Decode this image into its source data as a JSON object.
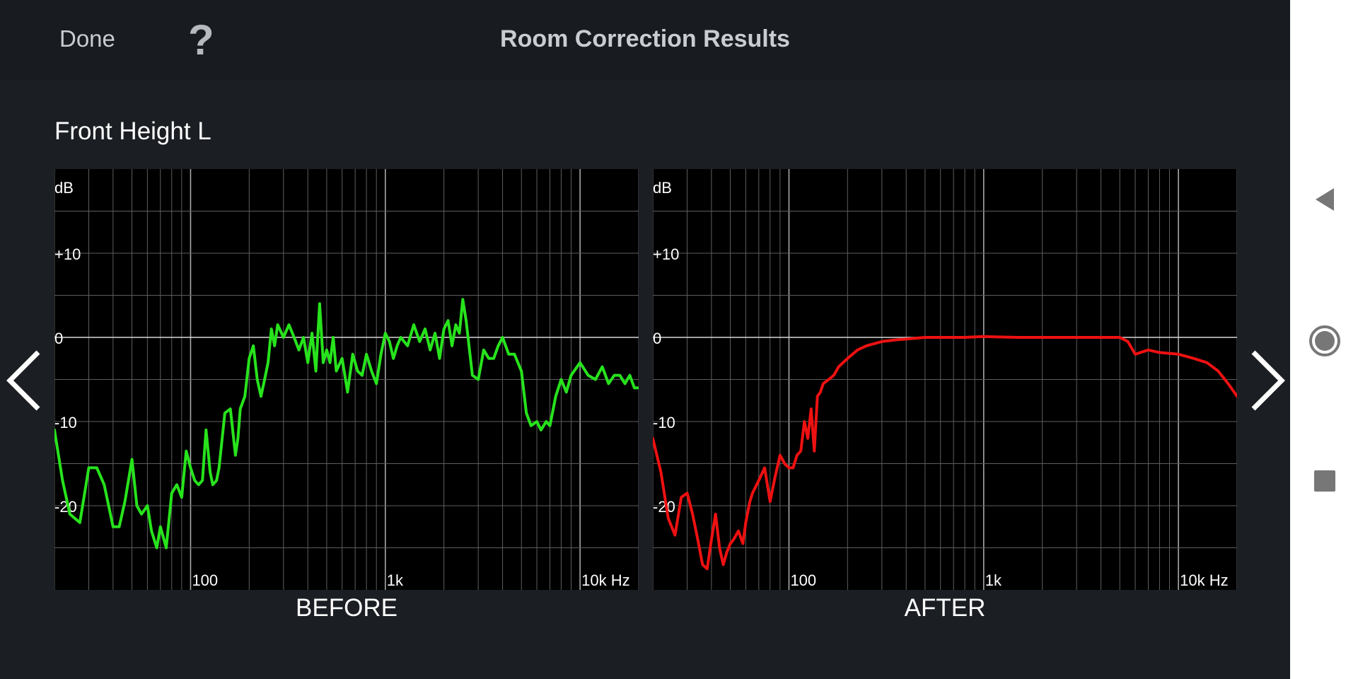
{
  "header": {
    "done_label": "Done",
    "help_label": "?",
    "title": "Room Correction Results"
  },
  "channel": {
    "name": "Front Height L"
  },
  "colors": {
    "before_curve": "#27e31c",
    "after_curve": "#ee1111",
    "grid": "#5e5e5e",
    "zero_line": "#d8d8d8",
    "background": "#1b1e23"
  },
  "icons": {
    "prev": "chevron-left-icon",
    "next": "chevron-right-icon",
    "back": "triangle-back-icon",
    "home": "circle-home-icon",
    "recent": "square-recent-icon"
  },
  "chart_data": [
    {
      "type": "line",
      "caption": "BEFORE",
      "ylabel": "dB",
      "x_scale": "log",
      "xlim": [
        20,
        20000
      ],
      "ylim": [
        -30,
        20
      ],
      "y_tick_labels": [
        {
          "value": 10,
          "label": "+10"
        },
        {
          "value": 0,
          "label": "0"
        },
        {
          "value": -10,
          "label": "-10"
        },
        {
          "value": -20,
          "label": "-20"
        }
      ],
      "x_tick_labels": [
        {
          "value": 100,
          "label": "100"
        },
        {
          "value": 1000,
          "label": "1k"
        },
        {
          "value": 10000,
          "label": "10k Hz"
        }
      ],
      "series": [
        {
          "color": "#27e31c",
          "x": [
            20,
            22,
            24,
            27,
            30,
            33,
            36,
            40,
            43,
            46,
            50,
            53,
            56,
            60,
            63,
            67,
            70,
            75,
            80,
            85,
            90,
            95,
            100,
            105,
            110,
            115,
            120,
            126,
            130,
            136,
            140,
            150,
            160,
            170,
            175,
            180,
            190,
            200,
            210,
            220,
            230,
            240,
            250,
            260,
            270,
            280,
            300,
            320,
            340,
            360,
            380,
            400,
            420,
            440,
            460,
            480,
            500,
            520,
            540,
            560,
            600,
            640,
            680,
            720,
            760,
            800,
            850,
            900,
            950,
            1000,
            1050,
            1100,
            1150,
            1200,
            1300,
            1400,
            1500,
            1600,
            1700,
            1800,
            1900,
            2000,
            2100,
            2200,
            2300,
            2400,
            2500,
            2600,
            2800,
            3000,
            3200,
            3400,
            3600,
            3800,
            4000,
            4300,
            4600,
            5000,
            5300,
            5600,
            6000,
            6300,
            6700,
            7000,
            7500,
            8000,
            8500,
            9000,
            10000,
            11000,
            12000,
            13000,
            14000,
            15000,
            16000,
            17000,
            18000,
            19000,
            20000
          ],
          "y": [
            -11,
            -17,
            -21,
            -22,
            -15.5,
            -15.5,
            -17.5,
            -22.5,
            -22.5,
            -19.5,
            -14.5,
            -20,
            -21,
            -20,
            -23,
            -25,
            -22.5,
            -25,
            -18.5,
            -17.5,
            -19,
            -13.5,
            -15.5,
            -17,
            -17.5,
            -17,
            -11,
            -16,
            -17.5,
            -17,
            -15.5,
            -9,
            -8.5,
            -14,
            -12,
            -8.5,
            -7,
            -2.5,
            -1,
            -5,
            -7,
            -5,
            -3,
            1,
            -1,
            1.5,
            0,
            1.5,
            0,
            -1.5,
            0,
            -3,
            0.5,
            -4,
            4,
            -3,
            -1.5,
            -3,
            0,
            -4,
            -2.5,
            -6.5,
            -2,
            -4,
            -4.5,
            -2,
            -4,
            -5.5,
            -2,
            0.5,
            -0.5,
            -2.5,
            -1,
            0,
            -1,
            1.5,
            -0.5,
            1,
            -1.5,
            0.5,
            -2.5,
            1,
            2,
            -1,
            1.5,
            0.5,
            4.5,
            2,
            -4.5,
            -5,
            -1.5,
            -2.5,
            -2.5,
            -1,
            0,
            -2,
            -2,
            -4,
            -9,
            -10.5,
            -10,
            -11,
            -10,
            -10.5,
            -7,
            -5,
            -6.5,
            -4.5,
            -3,
            -4.5,
            -5,
            -3.5,
            -5.5,
            -4.5,
            -4.5,
            -5.5,
            -4.5,
            -6,
            -6
          ]
        }
      ]
    },
    {
      "type": "line",
      "caption": "AFTER",
      "ylabel": "dB",
      "x_scale": "log",
      "xlim": [
        20,
        20000
      ],
      "ylim": [
        -30,
        20
      ],
      "y_tick_labels": [
        {
          "value": 10,
          "label": "+10"
        },
        {
          "value": 0,
          "label": "0"
        },
        {
          "value": -10,
          "label": "-10"
        },
        {
          "value": -20,
          "label": "-20"
        }
      ],
      "x_tick_labels": [
        {
          "value": 100,
          "label": "100"
        },
        {
          "value": 1000,
          "label": "1k"
        },
        {
          "value": 10000,
          "label": "10k Hz"
        }
      ],
      "series": [
        {
          "color": "#ee1111",
          "x": [
            20,
            22,
            24,
            26,
            28,
            30,
            32,
            34,
            36,
            38,
            40,
            42,
            44,
            46,
            48,
            50,
            52,
            55,
            58,
            60,
            63,
            65,
            70,
            75,
            80,
            85,
            90,
            95,
            100,
            105,
            110,
            115,
            120,
            125,
            130,
            135,
            140,
            145,
            150,
            160,
            170,
            180,
            200,
            225,
            250,
            300,
            350,
            400,
            500,
            600,
            700,
            800,
            1000,
            1500,
            2000,
            3000,
            4000,
            5000,
            5500,
            6000,
            7000,
            8000,
            10000,
            12000,
            14000,
            16000,
            18000,
            20000
          ],
          "y": [
            -12,
            -16,
            -21.5,
            -23.5,
            -19,
            -18.5,
            -21,
            -24,
            -27,
            -27.5,
            -24,
            -21,
            -25,
            -27,
            -25.5,
            -24.5,
            -24,
            -23,
            -24.5,
            -22,
            -19.5,
            -18.5,
            -17,
            -15.5,
            -19.5,
            -16.5,
            -14,
            -15,
            -15.5,
            -15.5,
            -14,
            -13.5,
            -10,
            -12,
            -8.5,
            -13.5,
            -7,
            -6.5,
            -5.5,
            -5,
            -4.5,
            -3.5,
            -2.5,
            -1.5,
            -1,
            -0.5,
            -0.3,
            -0.2,
            0,
            0,
            0,
            0,
            0.1,
            0,
            0,
            0,
            0,
            0,
            -0.5,
            -2,
            -1.5,
            -1.8,
            -2,
            -2.5,
            -3,
            -4,
            -5.5,
            -7
          ]
        }
      ]
    }
  ],
  "status_nav": {
    "prev_label": "",
    "next_label": ""
  }
}
